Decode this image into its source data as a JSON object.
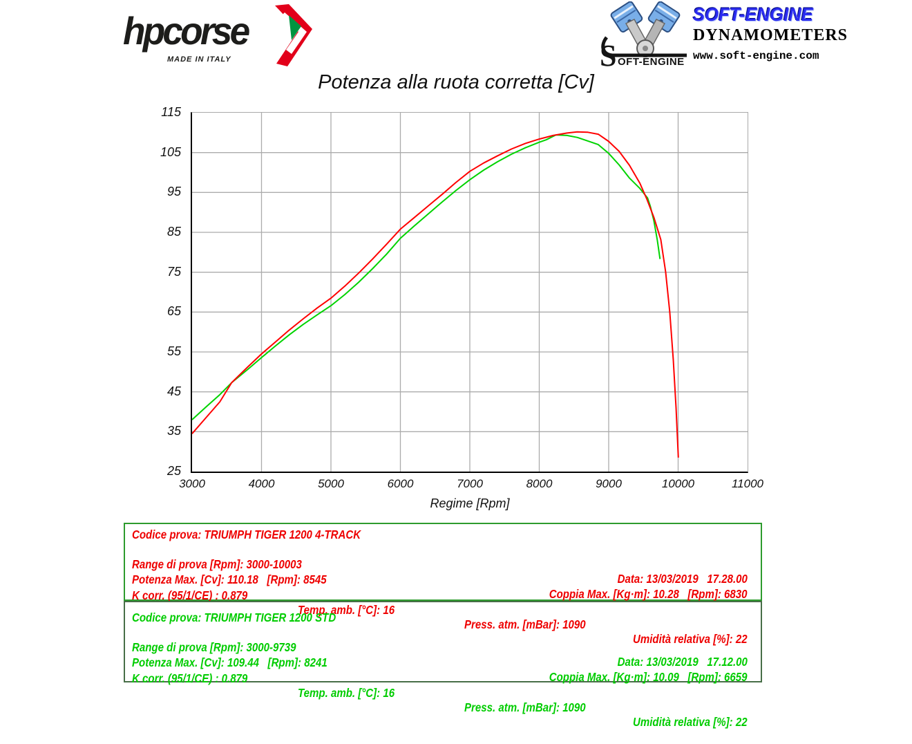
{
  "header": {
    "hpcorse": {
      "brand": "hpcorse",
      "tagline": "MADE IN ITALY",
      "text_color": "#1d1d1b",
      "arrow_red": "#e2001a",
      "arrow_green": "#009540"
    },
    "softengine": {
      "brand": "SOFT-ENGINE",
      "brand_color": "#2b2bf0",
      "s_letter": "S",
      "s_rest": "OFT-ENGINE",
      "line2": "DYNAMOMETERS",
      "line3": "www.soft-engine.com"
    }
  },
  "chart_data": {
    "type": "line",
    "title": "Potenza alla ruota corretta [Cv]",
    "xlabel": "Regime [Rpm]",
    "ylabel": "",
    "xlim": [
      3000,
      11000
    ],
    "ylim": [
      25,
      115
    ],
    "x_ticks": [
      3000,
      4000,
      5000,
      6000,
      7000,
      8000,
      9000,
      10000,
      11000
    ],
    "y_ticks": [
      25,
      35,
      45,
      55,
      65,
      75,
      85,
      95,
      105,
      115
    ],
    "grid": true,
    "grid_color": "#ababab",
    "legend_position": "none",
    "series": [
      {
        "name": "TRIUMPH TIGER 1200 STD",
        "color": "#00d300",
        "points": [
          [
            3000,
            38
          ],
          [
            3200,
            41.2
          ],
          [
            3400,
            44.3
          ],
          [
            3570,
            47.3
          ],
          [
            3800,
            50.6
          ],
          [
            4000,
            53.6
          ],
          [
            4200,
            56.5
          ],
          [
            4400,
            59.3
          ],
          [
            4600,
            61.9
          ],
          [
            4800,
            64.3
          ],
          [
            5000,
            66.6
          ],
          [
            5200,
            69.4
          ],
          [
            5400,
            72.5
          ],
          [
            5600,
            75.9
          ],
          [
            5800,
            79.5
          ],
          [
            6000,
            83.5
          ],
          [
            6200,
            86.6
          ],
          [
            6400,
            89.6
          ],
          [
            6600,
            92.6
          ],
          [
            6800,
            95.5
          ],
          [
            7000,
            98.2
          ],
          [
            7200,
            100.6
          ],
          [
            7400,
            102.7
          ],
          [
            7600,
            104.6
          ],
          [
            7800,
            106.2
          ],
          [
            8000,
            107.6
          ],
          [
            8100,
            108.2
          ],
          [
            8241,
            109.44
          ],
          [
            8400,
            109.3
          ],
          [
            8550,
            108.8
          ],
          [
            8700,
            107.9
          ],
          [
            8850,
            107
          ],
          [
            9000,
            104.8
          ],
          [
            9150,
            101.9
          ],
          [
            9300,
            98.6
          ],
          [
            9450,
            96
          ],
          [
            9560,
            93.6
          ],
          [
            9600,
            91.5
          ],
          [
            9650,
            88
          ],
          [
            9700,
            83
          ],
          [
            9739,
            78.3
          ]
        ]
      },
      {
        "name": "TRIUMPH TIGER 1200 4-TRACK",
        "color": "#ff0000",
        "points": [
          [
            3000,
            34.5
          ],
          [
            3200,
            38.5
          ],
          [
            3400,
            42.5
          ],
          [
            3570,
            47.3
          ],
          [
            3800,
            51.2
          ],
          [
            4000,
            54.5
          ],
          [
            4200,
            57.5
          ],
          [
            4400,
            60.5
          ],
          [
            4600,
            63.3
          ],
          [
            4800,
            66
          ],
          [
            5000,
            68.5
          ],
          [
            5200,
            71.5
          ],
          [
            5400,
            74.8
          ],
          [
            5600,
            78.3
          ],
          [
            5800,
            82
          ],
          [
            6000,
            85.8
          ],
          [
            6200,
            88.7
          ],
          [
            6400,
            91.6
          ],
          [
            6600,
            94.5
          ],
          [
            6800,
            97.5
          ],
          [
            7000,
            100.3
          ],
          [
            7200,
            102.4
          ],
          [
            7400,
            104.2
          ],
          [
            7600,
            105.9
          ],
          [
            7800,
            107.3
          ],
          [
            8000,
            108.4
          ],
          [
            8200,
            109.3
          ],
          [
            8400,
            109.9
          ],
          [
            8545,
            110.18
          ],
          [
            8700,
            110.1
          ],
          [
            8850,
            109.6
          ],
          [
            9000,
            107.8
          ],
          [
            9150,
            105.3
          ],
          [
            9300,
            101.8
          ],
          [
            9450,
            97.3
          ],
          [
            9550,
            93.3
          ],
          [
            9650,
            88.8
          ],
          [
            9750,
            83.2
          ],
          [
            9820,
            75.1
          ],
          [
            9880,
            65
          ],
          [
            9930,
            53
          ],
          [
            9970,
            41
          ],
          [
            10003,
            28.5
          ]
        ]
      }
    ]
  },
  "results": {
    "test_red": {
      "text_color": "#ee0000",
      "codice": "Codice prova: TRIUMPH TIGER 1200 4-TRACK",
      "range": "Range di prova [Rpm]: 3000-10003",
      "data": "Data: 13/03/2019   17.28.00",
      "potenza": "Potenza Max. [Cv]: 110.18   [Rpm]: 8545",
      "coppia": "Coppia Max. [Kg·m]: 10.28   [Rpm]: 6830",
      "kcorr": "K corr. (95/1/CE) : 0.879",
      "temp": "Temp. amb. [°C]: 16",
      "press": "Press. atm. [mBar]: 1090",
      "umidita": "Umidità relativa [%]: 22"
    },
    "test_green": {
      "text_color": "#00cc00",
      "codice": "Codice prova: TRIUMPH TIGER 1200 STD",
      "range": "Range di prova [Rpm]: 3000-9739",
      "data": "Data: 13/03/2019   17.12.00",
      "potenza": "Potenza Max. [Cv]: 109.44   [Rpm]: 8241",
      "coppia": "Coppia Max. [Kg·m]: 10.09   [Rpm]: 6659",
      "kcorr": "K corr. (95/1/CE) : 0.879",
      "temp": "Temp. amb. [°C]: 16",
      "press": "Press. atm. [mBar]: 1090",
      "umidita": "Umidità relativa [%]: 22"
    }
  }
}
